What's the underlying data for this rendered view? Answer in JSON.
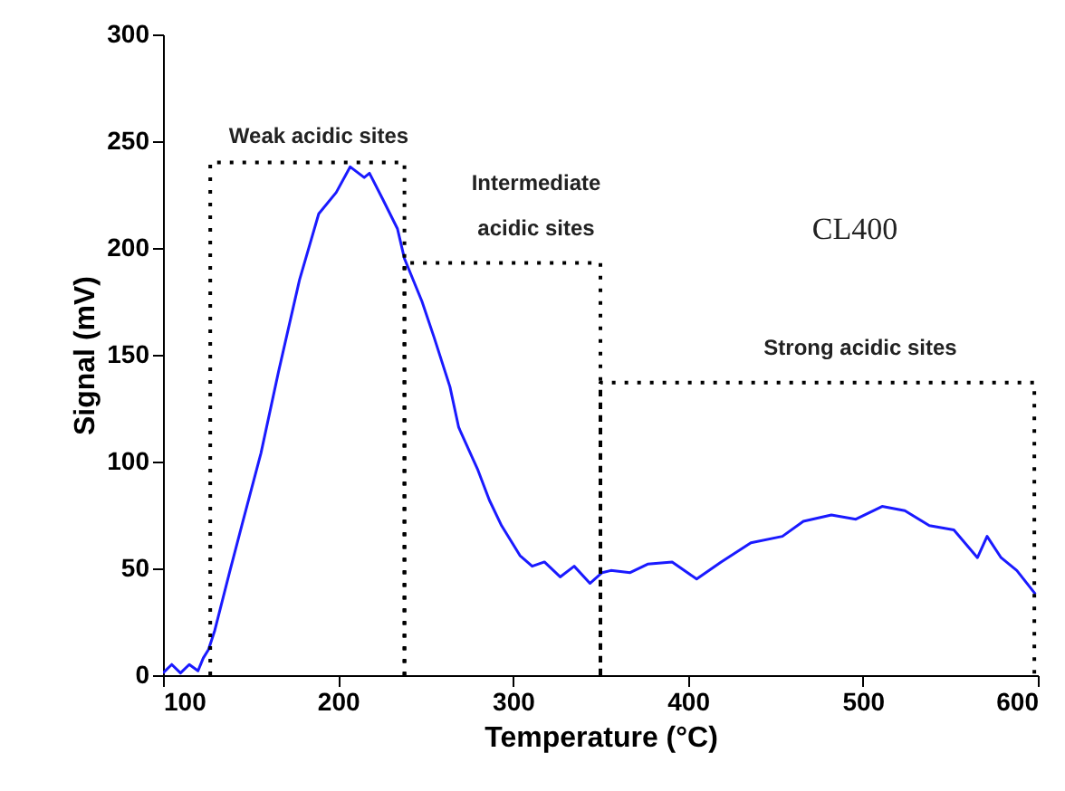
{
  "chart_data": {
    "type": "line",
    "xlabel": "Temperature (°C)",
    "ylabel": "Signal (mV)",
    "xlim": [
      100,
      600
    ],
    "ylim": [
      0,
      300
    ],
    "xticks": [
      100,
      200,
      300,
      400,
      500,
      600
    ],
    "yticks": [
      0,
      50,
      100,
      150,
      200,
      250,
      300
    ],
    "grid": false,
    "marker": "none",
    "series": [
      {
        "color": "#1a1aff",
        "line_style": "solid",
        "x": [
          100,
          105,
          110,
          115,
          120,
          123,
          126,
          129.6,
          138,
          145,
          156,
          166,
          178,
          189,
          199,
          207,
          215,
          218,
          225.5,
          234,
          238,
          248,
          255,
          264,
          269,
          280,
          286.5,
          293.5,
          304,
          311,
          318,
          327,
          335,
          344,
          351,
          356,
          367,
          377,
          391,
          405,
          419,
          436,
          454,
          466,
          482,
          496,
          511,
          524,
          538,
          552,
          565.5,
          571,
          579,
          588,
          598.6
        ],
        "values": [
          1,
          5,
          1,
          5,
          2,
          8,
          12,
          21,
          48,
          70,
          104,
          142,
          185,
          216,
          226,
          238,
          233,
          235,
          223,
          209,
          195,
          175,
          158,
          135,
          116,
          96,
          82,
          70,
          56,
          51,
          53,
          46,
          51,
          43,
          48,
          49,
          48,
          52,
          53,
          45,
          53,
          62,
          65,
          72,
          75,
          73,
          79,
          77,
          70,
          68,
          55,
          65,
          55,
          49,
          38
        ]
      },
      {
        "color": "#000000",
        "line_style": "dotted",
        "x": [
          127,
          127,
          238,
          238
        ],
        "values": [
          0,
          240,
          240,
          0
        ]
      },
      {
        "color": "#000000",
        "line_style": "dotted",
        "x": [
          238,
          238,
          350,
          350
        ],
        "values": [
          0,
          193,
          193,
          0
        ]
      },
      {
        "color": "#000000",
        "line_style": "dotted",
        "x": [
          350,
          350,
          598,
          598
        ],
        "values": [
          0,
          137,
          137,
          0
        ]
      }
    ],
    "annotations": [
      "Weak acidic sites",
      "Intermediate\nacidic sites",
      "Strong acidic sites",
      "CL400"
    ]
  }
}
